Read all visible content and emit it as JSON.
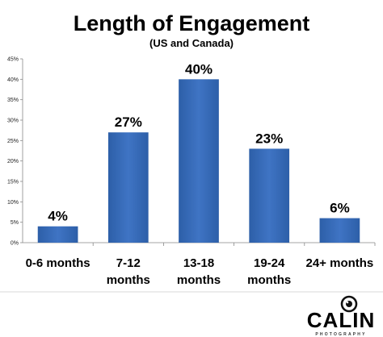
{
  "chart_data": {
    "type": "bar",
    "title": "Length of Engagement",
    "subtitle": "(US and Canada)",
    "categories": [
      "0-6 months",
      "7-12 months",
      "13-18 months",
      "19-24 months",
      "24+ months"
    ],
    "category_lines": [
      [
        "0-6 months"
      ],
      [
        "7-12",
        "months"
      ],
      [
        "13-18",
        "months"
      ],
      [
        "19-24",
        "months"
      ],
      [
        "24+ months"
      ]
    ],
    "values": [
      4,
      27,
      40,
      23,
      6
    ],
    "data_labels": [
      "4%",
      "27%",
      "40%",
      "23%",
      "6%"
    ],
    "y_ticks": [
      0,
      5,
      10,
      15,
      20,
      25,
      30,
      35,
      40,
      45
    ],
    "y_tick_labels": [
      "0%",
      "5%",
      "10%",
      "15%",
      "20%",
      "25%",
      "30%",
      "35%",
      "40%",
      "45%"
    ],
    "ylim": [
      0,
      45
    ],
    "xlabel": "",
    "ylabel": "",
    "grid": false,
    "bar_color": "#3F74C4",
    "bar_color_dark": "#2D5FA8"
  },
  "logo": {
    "name": "CALIN",
    "tagline": "PHOTOGRAPHY"
  }
}
